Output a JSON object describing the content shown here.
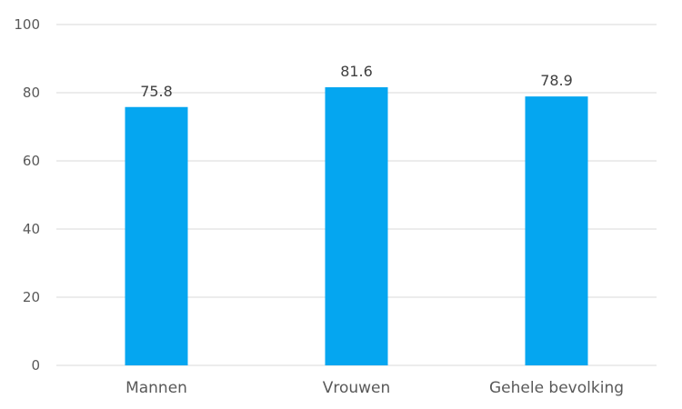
{
  "chart_data": {
    "type": "bar",
    "categories": [
      "Mannen",
      "Vrouwen",
      "Gehele bevolking"
    ],
    "values": [
      75.8,
      81.6,
      78.9
    ],
    "data_labels": [
      "75.8",
      "81.6",
      "78.9"
    ],
    "title": "",
    "xlabel": "",
    "ylabel": "",
    "ylim": [
      0,
      100
    ],
    "yticks": [
      0,
      20,
      40,
      60,
      80,
      100
    ],
    "ytick_labels": [
      "0",
      "20",
      "40",
      "60",
      "80",
      "100"
    ],
    "grid": true,
    "legend": "none",
    "bar_color": "#05a6f0"
  }
}
